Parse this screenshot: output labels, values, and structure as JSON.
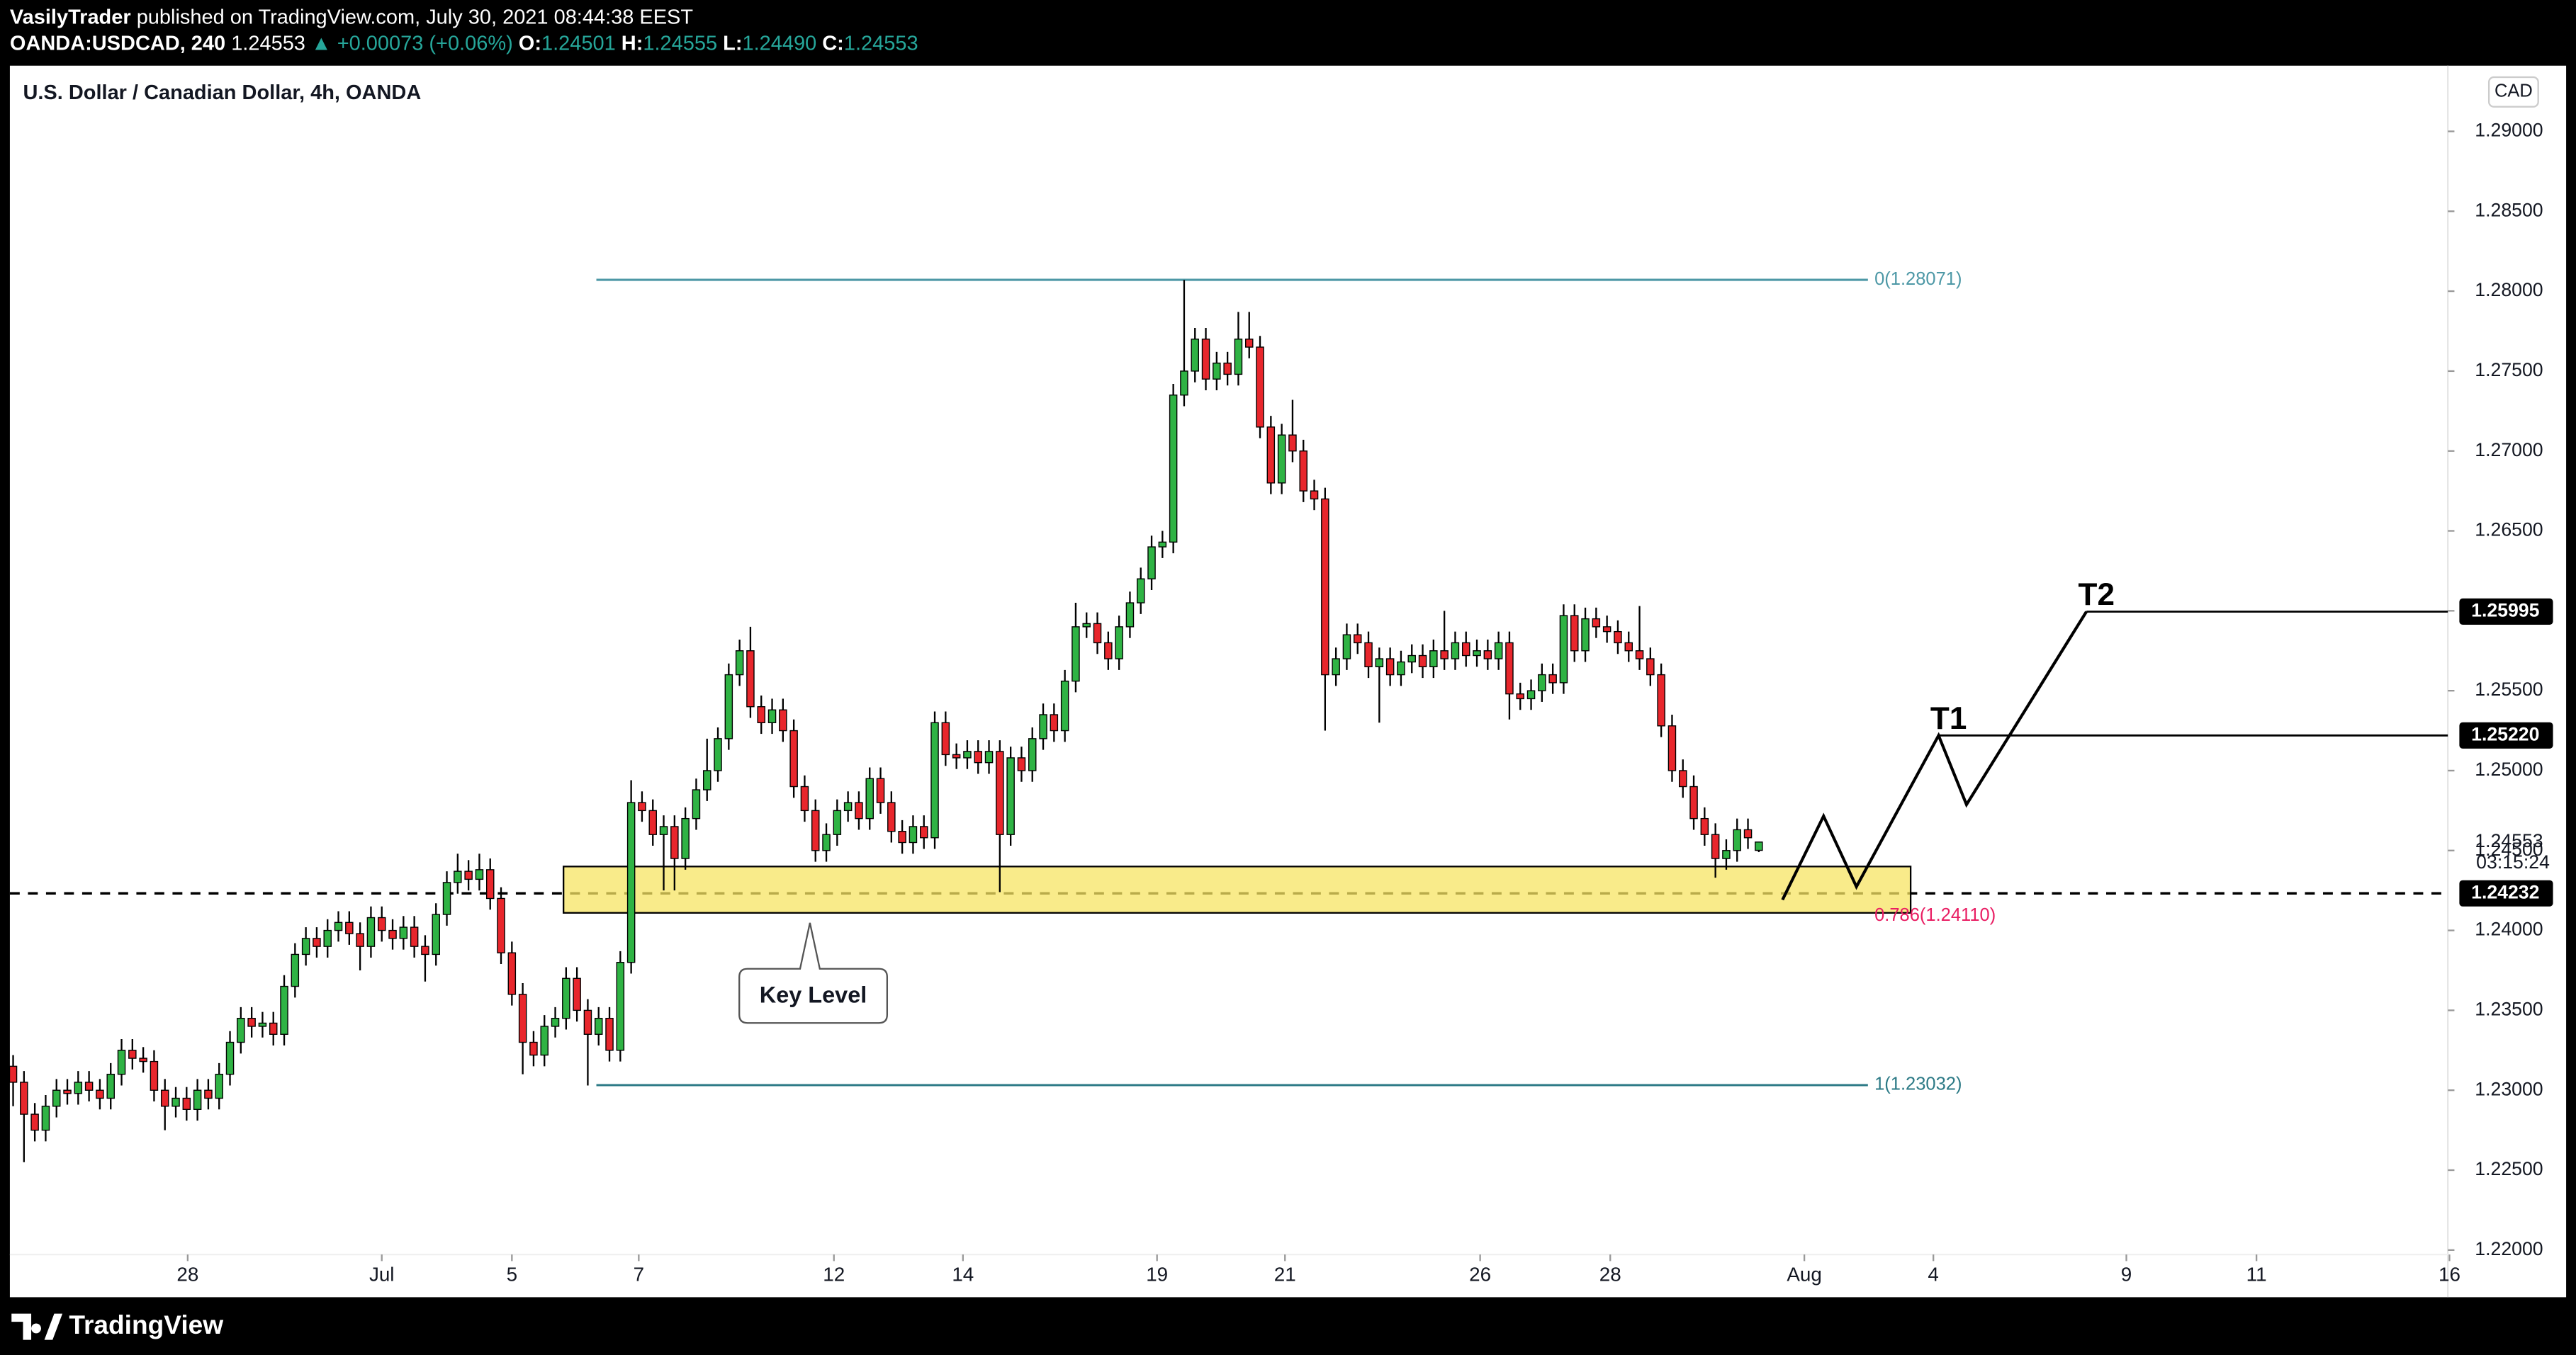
{
  "header": {
    "author": "VasilyTrader",
    "published": "published on TradingView.com, July 30, 2021 08:44:38 EEST",
    "symbol": "OANDA:USDCAD, 240",
    "last": "1.24553",
    "change": "▲ +0.00073 (+0.06%)",
    "ohlc": [
      {
        "label": "O:",
        "value": "1.24501"
      },
      {
        "label": "H:",
        "value": "1.24555"
      },
      {
        "label": "L:",
        "value": "1.24490"
      },
      {
        "label": "C:",
        "value": "1.24553"
      }
    ]
  },
  "chart_data": {
    "type": "candlestick",
    "title": "U.S. Dollar / Canadian Dollar, 4h, OANDA",
    "currency": "CAD",
    "up_color": "#2fb344",
    "down_color": "#e8262c",
    "open": [
      1.2315,
      1.2305,
      1.2285,
      1.2275,
      1.229,
      1.23,
      1.2298,
      1.2305,
      1.23,
      1.2295,
      1.231,
      1.2325,
      1.232,
      1.2318,
      1.23,
      1.229,
      1.2295,
      1.2288,
      1.23,
      1.2295,
      1.231,
      1.233,
      1.2345,
      1.234,
      1.2342,
      1.2335,
      1.2365,
      1.2385,
      1.2395,
      1.239,
      1.24,
      1.2405,
      1.2398,
      1.239,
      1.2408,
      1.24,
      1.2395,
      1.2402,
      1.239,
      1.2385,
      1.241,
      1.243,
      1.2437,
      1.2432,
      1.2438,
      1.242,
      1.2386,
      1.236,
      1.233,
      1.2322,
      1.234,
      1.2345,
      1.237,
      1.235,
      1.2335,
      1.2345,
      1.2325,
      1.238,
      1.248,
      1.2475,
      1.246,
      1.2465,
      1.2445,
      1.247,
      1.2488,
      1.25,
      1.252,
      1.256,
      1.2575,
      1.254,
      1.253,
      1.2538,
      1.2525,
      1.249,
      1.2475,
      1.245,
      1.246,
      1.2475,
      1.248,
      1.247,
      1.2495,
      1.248,
      1.2462,
      1.2455,
      1.2465,
      1.2458,
      1.253,
      1.251,
      1.2508,
      1.2512,
      1.2505,
      1.2512,
      1.246,
      1.2508,
      1.25,
      1.252,
      1.2535,
      1.2525,
      1.2556,
      1.259,
      1.2592,
      1.258,
      1.257,
      1.259,
      1.2605,
      1.262,
      1.264,
      1.2643,
      1.2735,
      1.275,
      1.277,
      1.2745,
      1.2755,
      1.2748,
      1.277,
      1.2765,
      1.2715,
      1.268,
      1.271,
      1.27,
      1.2675,
      1.267,
      1.256,
      1.257,
      1.2585,
      1.258,
      1.2565,
      1.257,
      1.256,
      1.2568,
      1.2572,
      1.2565,
      1.2575,
      1.257,
      1.258,
      1.2572,
      1.2575,
      1.257,
      1.258,
      1.2548,
      1.2545,
      1.255,
      1.256,
      1.2555,
      1.2597,
      1.2575,
      1.2595,
      1.259,
      1.2587,
      1.258,
      1.2575,
      1.257,
      1.256,
      1.2528,
      1.25,
      1.249,
      1.247,
      1.246,
      1.2445,
      1.245,
      1.2463,
      1.24501
    ],
    "high": [
      1.2322,
      1.2312,
      1.2292,
      1.2297,
      1.2307,
      1.2307,
      1.2312,
      1.2312,
      1.2307,
      1.2317,
      1.2332,
      1.2332,
      1.2327,
      1.2325,
      1.2307,
      1.2302,
      1.2302,
      1.2307,
      1.2307,
      1.2317,
      1.2337,
      1.2352,
      1.2352,
      1.2349,
      1.2349,
      1.2372,
      1.2392,
      1.2402,
      1.2402,
      1.2407,
      1.2412,
      1.2412,
      1.2405,
      1.2415,
      1.2415,
      1.2407,
      1.2409,
      1.2409,
      1.2397,
      1.2417,
      1.2437,
      1.2448,
      1.2444,
      1.2448,
      1.2445,
      1.2427,
      1.2393,
      1.2367,
      1.2337,
      1.2347,
      1.2352,
      1.2377,
      1.2377,
      1.2357,
      1.2352,
      1.2352,
      1.2387,
      1.2494,
      1.2487,
      1.2482,
      1.2472,
      1.2472,
      1.2477,
      1.2495,
      1.252,
      1.2527,
      1.2567,
      1.2582,
      1.259,
      1.2547,
      1.2545,
      1.2545,
      1.2532,
      1.2497,
      1.2482,
      1.2467,
      1.2482,
      1.2487,
      1.2487,
      1.2502,
      1.2502,
      1.2487,
      1.2469,
      1.2472,
      1.2472,
      1.2537,
      1.2537,
      1.2517,
      1.2519,
      1.2519,
      1.2519,
      1.2519,
      1.2515,
      1.2515,
      1.2527,
      1.2542,
      1.2542,
      1.2563,
      1.2605,
      1.2599,
      1.2599,
      1.2587,
      1.2597,
      1.2612,
      1.2627,
      1.2647,
      1.265,
      1.2742,
      1.2807,
      1.2777,
      1.2777,
      1.2762,
      1.2762,
      1.2787,
      1.2787,
      1.2772,
      1.2722,
      1.2717,
      1.2732,
      1.2707,
      1.2682,
      1.2677,
      1.2577,
      1.2592,
      1.2592,
      1.2587,
      1.2577,
      1.2577,
      1.2575,
      1.2579,
      1.2579,
      1.2582,
      1.26,
      1.2587,
      1.2587,
      1.2582,
      1.2582,
      1.2587,
      1.2587,
      1.2555,
      1.2557,
      1.2567,
      1.2567,
      1.2604,
      1.2604,
      1.2602,
      1.2602,
      1.2597,
      1.2594,
      1.2587,
      1.2603,
      1.2577,
      1.2567,
      1.2535,
      1.2507,
      1.2497,
      1.2477,
      1.2467,
      1.2457,
      1.247,
      1.247,
      1.24555
    ],
    "low": [
      1.229,
      1.2255,
      1.2268,
      1.2268,
      1.2283,
      1.2291,
      1.2291,
      1.2293,
      1.2288,
      1.2288,
      1.2303,
      1.2313,
      1.2311,
      1.2293,
      1.2275,
      1.2283,
      1.2281,
      1.2281,
      1.2288,
      1.2288,
      1.2303,
      1.2323,
      1.2333,
      1.2333,
      1.2328,
      1.2328,
      1.2358,
      1.2378,
      1.2383,
      1.2383,
      1.2393,
      1.2391,
      1.2375,
      1.2383,
      1.2393,
      1.2388,
      1.2388,
      1.2383,
      1.2368,
      1.2378,
      1.2403,
      1.2423,
      1.2425,
      1.2425,
      1.2413,
      1.2379,
      1.2353,
      1.231,
      1.2315,
      1.2315,
      1.2333,
      1.2338,
      1.2343,
      1.2303,
      1.2328,
      1.2318,
      1.2318,
      1.2373,
      1.2468,
      1.2453,
      1.2425,
      1.2425,
      1.2438,
      1.2463,
      1.2481,
      1.2493,
      1.2513,
      1.2553,
      1.2533,
      1.2523,
      1.2523,
      1.2518,
      1.2483,
      1.2468,
      1.2443,
      1.2443,
      1.2453,
      1.2468,
      1.2463,
      1.2463,
      1.2473,
      1.2455,
      1.2448,
      1.2448,
      1.2451,
      1.2451,
      1.2503,
      1.2501,
      1.2501,
      1.2498,
      1.2498,
      1.2424,
      1.2453,
      1.2493,
      1.2493,
      1.2513,
      1.2518,
      1.2518,
      1.2549,
      1.2583,
      1.2573,
      1.2563,
      1.2563,
      1.2583,
      1.2598,
      1.2613,
      1.2633,
      1.2636,
      1.2728,
      1.2743,
      1.2738,
      1.2738,
      1.2741,
      1.2741,
      1.2758,
      1.2708,
      1.2673,
      1.2673,
      1.2693,
      1.2668,
      1.2663,
      1.2525,
      1.2553,
      1.2563,
      1.2573,
      1.2558,
      1.253,
      1.2553,
      1.2553,
      1.2561,
      1.2558,
      1.2558,
      1.2563,
      1.2563,
      1.2565,
      1.2565,
      1.2563,
      1.2563,
      1.2532,
      1.2538,
      1.2538,
      1.2543,
      1.2548,
      1.2548,
      1.2568,
      1.2568,
      1.2583,
      1.258,
      1.2573,
      1.2568,
      1.2563,
      1.2553,
      1.2521,
      1.2493,
      1.2483,
      1.2463,
      1.2453,
      1.2433,
      1.2438,
      1.2443,
      1.2451,
      1.2449
    ],
    "close": [
      1.2305,
      1.2285,
      1.2275,
      1.229,
      1.23,
      1.2298,
      1.2305,
      1.23,
      1.2295,
      1.231,
      1.2325,
      1.232,
      1.2318,
      1.23,
      1.229,
      1.2295,
      1.2288,
      1.23,
      1.2295,
      1.231,
      1.233,
      1.2345,
      1.234,
      1.2342,
      1.2335,
      1.2365,
      1.2385,
      1.2395,
      1.239,
      1.24,
      1.2405,
      1.2398,
      1.239,
      1.2408,
      1.24,
      1.2395,
      1.2402,
      1.239,
      1.2385,
      1.241,
      1.243,
      1.2437,
      1.2432,
      1.2438,
      1.242,
      1.2386,
      1.236,
      1.233,
      1.2322,
      1.234,
      1.2345,
      1.237,
      1.235,
      1.2335,
      1.2345,
      1.2325,
      1.238,
      1.248,
      1.2475,
      1.246,
      1.2465,
      1.2445,
      1.247,
      1.2488,
      1.25,
      1.252,
      1.256,
      1.2575,
      1.254,
      1.253,
      1.2538,
      1.2525,
      1.249,
      1.2475,
      1.245,
      1.246,
      1.2475,
      1.248,
      1.247,
      1.2495,
      1.248,
      1.2462,
      1.2455,
      1.2465,
      1.2458,
      1.253,
      1.251,
      1.2508,
      1.2512,
      1.2505,
      1.2512,
      1.246,
      1.2508,
      1.25,
      1.252,
      1.2535,
      1.2525,
      1.2556,
      1.259,
      1.2592,
      1.258,
      1.257,
      1.259,
      1.2605,
      1.262,
      1.264,
      1.2643,
      1.2735,
      1.275,
      1.277,
      1.2745,
      1.2755,
      1.2748,
      1.277,
      1.2765,
      1.2715,
      1.268,
      1.271,
      1.27,
      1.2675,
      1.267,
      1.256,
      1.257,
      1.2585,
      1.258,
      1.2565,
      1.257,
      1.256,
      1.2568,
      1.2572,
      1.2565,
      1.2575,
      1.257,
      1.258,
      1.2572,
      1.2575,
      1.257,
      1.258,
      1.2548,
      1.2545,
      1.255,
      1.256,
      1.2555,
      1.2597,
      1.2575,
      1.2595,
      1.259,
      1.2587,
      1.258,
      1.2575,
      1.257,
      1.256,
      1.2528,
      1.25,
      1.249,
      1.247,
      1.246,
      1.2445,
      1.245,
      1.2463,
      1.2458,
      1.24553
    ],
    "xlim": [
      -1.21,
      224.55
    ],
    "xticks": [
      {
        "value": 16.1,
        "label": "28"
      },
      {
        "value": 34,
        "label": "Jul"
      },
      {
        "value": 46,
        "label": "5"
      },
      {
        "value": 57.7,
        "label": "7"
      },
      {
        "value": 75.7,
        "label": "12"
      },
      {
        "value": 87.6,
        "label": "14"
      },
      {
        "value": 105.5,
        "label": "19"
      },
      {
        "value": 117.3,
        "label": "21"
      },
      {
        "value": 135.3,
        "label": "26"
      },
      {
        "value": 147.3,
        "label": "28"
      },
      {
        "value": 165.2,
        "label": "Aug"
      },
      {
        "value": 177.1,
        "label": "4"
      },
      {
        "value": 194.9,
        "label": "9"
      },
      {
        "value": 206.9,
        "label": "11"
      },
      {
        "value": 224.7,
        "label": "16"
      }
    ],
    "ylim": [
      1.21705,
      1.29411
    ],
    "yticks": [
      {
        "value": 1.29,
        "label": "1.29000"
      },
      {
        "value": 1.285,
        "label": "1.28500"
      },
      {
        "value": 1.28,
        "label": "1.28000"
      },
      {
        "value": 1.275,
        "label": "1.27500"
      },
      {
        "value": 1.27,
        "label": "1.27000"
      },
      {
        "value": 1.265,
        "label": "1.26500"
      },
      {
        "value": 1.26,
        "label": "1.26000"
      },
      {
        "value": 1.255,
        "label": "1.25500"
      },
      {
        "value": 1.25,
        "label": "1.25000"
      },
      {
        "value": 1.245,
        "label": "1.24500"
      },
      {
        "value": 1.24,
        "label": "1.24000"
      },
      {
        "value": 1.235,
        "label": "1.23500"
      },
      {
        "value": 1.23,
        "label": "1.23000"
      },
      {
        "value": 1.225,
        "label": "1.22500"
      },
      {
        "value": 1.22,
        "label": "1.22000"
      }
    ],
    "grid": false,
    "fib_levels": [
      {
        "label": "0(1.28071)",
        "value": 1.28071
      },
      {
        "label": "1(1.23032)",
        "value": 1.23032
      },
      {
        "label": "0.786(1.24110)",
        "value": 1.2411
      }
    ],
    "key_label": "Key Level",
    "support_line": 1.24232,
    "targets": [
      {
        "name": "T1",
        "price": {
          "value": 1.2522,
          "label": "1.25220"
        }
      },
      {
        "name": "T2",
        "price": 1.25995
      }
    ],
    "countdown": "03:15:24"
  },
  "footer": {
    "brand": "TradingView"
  }
}
